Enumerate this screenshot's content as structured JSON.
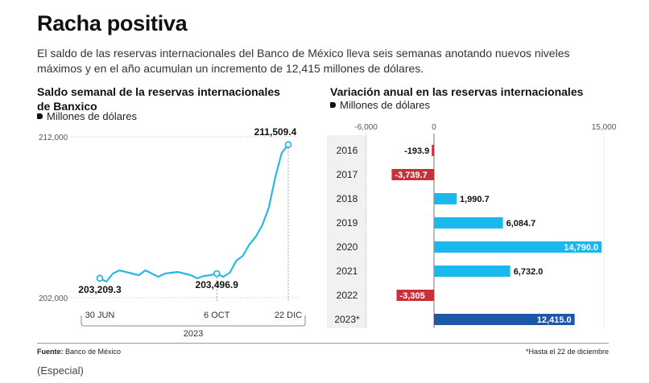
{
  "header": {
    "title": "Racha positiva",
    "subtitle": "El saldo de las reservas internacionales del Banco de México lleva seis semanas anotando nuevos niveles máximos y en el año acumulan un incremento de 12,415 millones de dólares."
  },
  "left_panel": {
    "title": "Saldo semanal de la reservas internacionales de Banxico",
    "unit": "Millones de dólares"
  },
  "right_panel": {
    "title": "Variación anual en las reservas internacionales",
    "unit": "Millones de dólares"
  },
  "footer": {
    "source_label": "Fuente:",
    "source_text": "Banco de México",
    "note": "*Hasta el 22 de diciembre",
    "credit": "(Especial)"
  },
  "colors": {
    "line": "#2bb7e6",
    "bar_positive": "#1ab8ec",
    "bar_negative": "#c8303a",
    "bar_highlight": "#1f57a8"
  },
  "chart_data": [
    {
      "type": "line",
      "title": "Saldo semanal de la reservas internacionales de Banxico",
      "ylabel": "Millones de dólares",
      "ylim": [
        202000,
        212000
      ],
      "y_ticks": [
        "212,000",
        "202,000"
      ],
      "x_tick_labels": [
        "30 JUN",
        "6 OCT",
        "22 DIC"
      ],
      "x_group_label": "2023",
      "grid": false,
      "points": [
        203209.3,
        203000,
        203500,
        203700,
        203600,
        203500,
        203400,
        203700,
        203500,
        203300,
        203500,
        203550,
        203600,
        203500,
        203400,
        203200,
        203350,
        203400,
        203496.9,
        203300,
        203550,
        204300,
        204600,
        205300,
        205800,
        206500,
        207600,
        209500,
        211000,
        211509.4
      ],
      "annotations": [
        {
          "label": "203,209.3",
          "index": 0
        },
        {
          "label": "203,496.9",
          "index": 18
        },
        {
          "label": "211,509.4",
          "index": 29
        }
      ]
    },
    {
      "type": "bar",
      "orientation": "horizontal",
      "title": "Variación anual en las reservas internacionales",
      "xlabel": "Millones de dólares",
      "xlim": [
        -6000,
        15000
      ],
      "x_ticks": [
        "-6,000",
        "0",
        "15,000"
      ],
      "categories": [
        "2016",
        "2017",
        "2018",
        "2019",
        "2020",
        "2021",
        "2022",
        "2023*"
      ],
      "values": [
        -193.9,
        -3739.7,
        1990.7,
        6084.7,
        14790.0,
        6732.0,
        -3305,
        12415.0
      ],
      "value_labels": [
        "-193.9",
        "-3,739.7",
        "1,990.7",
        "6,084.7",
        "14,790.0",
        "6,732.0",
        "-3,305",
        "12,415.0"
      ]
    }
  ]
}
